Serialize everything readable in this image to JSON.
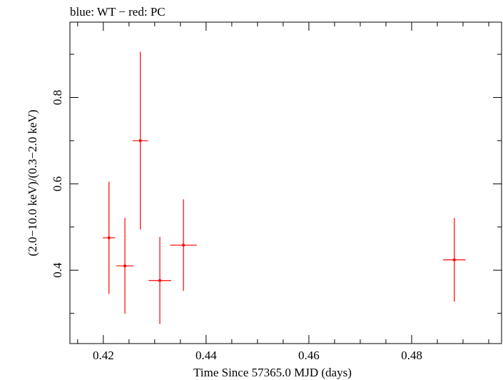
{
  "chart_data": {
    "type": "scatter",
    "title": "blue: WT − red: PC",
    "xlabel": "Time Since 57365.0 MJD (days)",
    "ylabel": "(2.0−10.0 keV)/(0.3−2.0 keV)",
    "xlim": [
      0.4135,
      0.4975
    ],
    "ylim": [
      0.23,
      0.9745
    ],
    "x_ticks": [
      0.42,
      0.44,
      0.46,
      0.48
    ],
    "x_tick_labels": [
      "0.42",
      "0.44",
      "0.46",
      "0.48"
    ],
    "y_ticks": [
      0.4,
      0.6,
      0.8
    ],
    "y_tick_labels": [
      "0.4",
      "0.6",
      "0.8"
    ],
    "grid": false,
    "series": [
      {
        "color": "#ff0000",
        "points": [
          {
            "x": 0.4211,
            "xerr": 0.0012,
            "y": 0.475,
            "yerr_low": 0.13,
            "yerr_high": 0.13
          },
          {
            "x": 0.4242,
            "xerr": 0.0017,
            "y": 0.41,
            "yerr_low": 0.111,
            "yerr_high": 0.111
          },
          {
            "x": 0.4272,
            "xerr": 0.0015,
            "y": 0.7,
            "yerr_low": 0.206,
            "yerr_high": 0.206
          },
          {
            "x": 0.431,
            "xerr": 0.0022,
            "y": 0.376,
            "yerr_low": 0.101,
            "yerr_high": 0.101
          },
          {
            "x": 0.4356,
            "xerr": 0.0026,
            "y": 0.458,
            "yerr_low": 0.106,
            "yerr_high": 0.106
          },
          {
            "x": 0.4883,
            "xerr": 0.0022,
            "y": 0.424,
            "yerr_low": 0.097,
            "yerr_high": 0.097
          }
        ]
      }
    ]
  }
}
